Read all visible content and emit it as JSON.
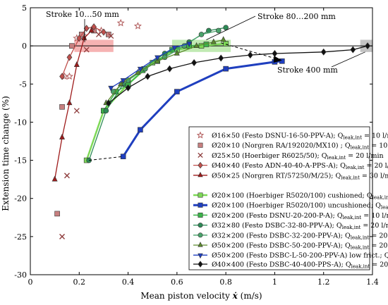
{
  "chart_data": {
    "type": "scatter",
    "xlabel": "Mean piston velocity",
    "xsymbol": "ẋ",
    "xunit": "(m/s)",
    "ylabel": "Extension time change (%)",
    "xlim": [
      0,
      1.4
    ],
    "ylim": [
      -30,
      5
    ],
    "xticks": [
      "0",
      "0.2",
      "0.4",
      "0.6",
      "0.8",
      "1",
      "1.2",
      "1.4"
    ],
    "yticks": [
      "5",
      "0",
      "-5",
      "-10",
      "-15",
      "-20",
      "-25",
      "-30"
    ],
    "grid": false,
    "legend_placement": "right",
    "annotations": [
      {
        "text": "Stroke 10…50 mm"
      },
      {
        "text": "Stroke 80…200 mm"
      },
      {
        "text": "Stroke 400 mm"
      }
    ],
    "series": [
      {
        "name": "Ø16×50 (Festo DSNU-16-50-PPV-A); Q",
        "sub": "leak,int",
        "tail": " = 10 l/min",
        "color": "#b05a5a",
        "marker": "star",
        "line": false,
        "x": [
          0.14,
          0.16,
          0.19,
          0.22,
          0.29,
          0.37,
          0.44
        ],
        "y": [
          -4,
          -4,
          1,
          1.3,
          2,
          3,
          2.6
        ]
      },
      {
        "name": "Ø20×10 (Norgren RA/192020/MX10) ; Q",
        "sub": "leak,int",
        "tail": " = 10 l/min",
        "color": "#c77f7f",
        "marker": "square",
        "line": false,
        "x": [
          0.11,
          0.13,
          0.17,
          0.21,
          0.26,
          0.32
        ],
        "y": [
          -22,
          -8,
          0,
          1.5,
          2,
          1.5
        ]
      },
      {
        "name": "Ø25×50 (Hoerbiger R6025/50); Q",
        "sub": "leak,int",
        "tail": " = 20 l/min",
        "color": "#8c3a3a",
        "marker": "cross",
        "line": false,
        "x": [
          0.13,
          0.15,
          0.19,
          0.23,
          0.28,
          0.33
        ],
        "y": [
          -25,
          -17,
          -8.5,
          -0.5,
          1.5,
          1.3
        ]
      },
      {
        "name": "Ø40×40 (Festo ADN-40-40-A-PPS-A); Q",
        "sub": "leak,int",
        "tail": " = 20 l/min",
        "color": "#c0504d",
        "marker": "diamond",
        "line": true,
        "x": [
          0.13,
          0.16,
          0.2,
          0.23,
          0.26,
          0.3
        ],
        "y": [
          -4,
          -1.5,
          1,
          2.3,
          2.5,
          1.8
        ]
      },
      {
        "name": "Ø50×25 (Norgren RT/57250/M/25); Q",
        "sub": "leak,int",
        "tail": " = 30 l/min",
        "color": "#9e1b1b",
        "marker": "triangle",
        "line": true,
        "x": [
          0.1,
          0.13,
          0.16,
          0.19,
          0.22,
          0.25
        ],
        "y": [
          -17.5,
          -12,
          -7.5,
          -2.5,
          1,
          2
        ]
      },
      {
        "name": "Ø20×100 (Hoerbiger R5020/100) cushioned; Q",
        "sub": "leak,int",
        "tail": " = 20 l/min",
        "color": "#7ed957",
        "marker": "square",
        "line": true,
        "lw": 2.5,
        "x": [
          0.23,
          0.3,
          0.4,
          0.5,
          0.6,
          0.7,
          0.8
        ],
        "y": [
          -15,
          -8.5,
          -5,
          -2.2,
          -0.5,
          0,
          0.3
        ]
      },
      {
        "name": "Ø20×100 (Hoerbiger R5020/100) uncushioned; Q",
        "sub": "leak,int",
        "tail": " = 20 l/min",
        "color": "#1f3fbf",
        "marker": "square",
        "line": true,
        "lw": 3,
        "x": [
          0.38,
          0.45,
          0.6,
          0.8,
          1.0,
          1.03
        ],
        "y": [
          -14.5,
          -11,
          -6,
          -3,
          -2.1,
          -2
        ]
      },
      {
        "name": "Ø20×200 (Festo DSNU-20-200-P-A); Q",
        "sub": "leak,int",
        "tail": " = 10 l/min",
        "color": "#3bb54a",
        "marker": "square",
        "line": true,
        "lw": 1.5,
        "x": [
          0.3,
          0.35,
          0.4,
          0.46,
          0.52,
          0.58,
          0.65,
          0.72
        ],
        "y": [
          -8.5,
          -6,
          -5.1,
          -3.2,
          -2,
          -0.5,
          0,
          0.2
        ]
      },
      {
        "name": "Ø32×80 (Festo DSBC-32-80-PPV-A); Q",
        "sub": "leak,int",
        "tail": " = 20 l/min",
        "color": "#2e8b57",
        "marker": "circle",
        "line": true,
        "x": [
          0.24,
          0.31,
          0.38,
          0.46,
          0.55,
          0.65,
          0.73,
          0.8
        ],
        "y": [
          -15,
          -8.5,
          -5,
          -3,
          -1,
          0.5,
          2,
          2.4
        ]
      },
      {
        "name": "Ø32×200 (Festo DSBC-32-200-PPV-A); Q",
        "sub": "leak,int",
        "tail": " = 20 l/min",
        "color": "#4aa36b",
        "marker": "circle",
        "line": true,
        "x": [
          0.34,
          0.4,
          0.47,
          0.55,
          0.63,
          0.7,
          0.77
        ],
        "y": [
          -6,
          -4.5,
          -3,
          -1.5,
          0,
          1.5,
          2
        ]
      },
      {
        "name": "Ø50×200 (Festo DSBC-50-200-PPV-A); Q",
        "sub": "leak,int",
        "tail": " = 20 l/min",
        "color": "#5c8a2e",
        "marker": "triangle",
        "line": true,
        "x": [
          0.31,
          0.37,
          0.44,
          0.52,
          0.6,
          0.68,
          0.75,
          0.79
        ],
        "y": [
          -7.5,
          -5,
          -3.5,
          -2,
          -1,
          0,
          0.5,
          0.8
        ]
      },
      {
        "name": "Ø50×200 (Festo DSBC-L-50-200-PPV-A) low frict.; Q",
        "sub": "leak,int",
        "tail": " = 20 l/min",
        "color": "#1f3fbf",
        "marker": "tri-down",
        "line": true,
        "x": [
          0.33,
          0.38,
          0.45,
          0.52,
          0.59,
          0.65
        ],
        "y": [
          -5.5,
          -4.5,
          -3,
          -1.5,
          -0.2,
          0.3
        ]
      },
      {
        "name": "Ø40×400 (Festo DSBC-40-400-PPS-A); Q",
        "sub": "leak,int",
        "tail": " = 20 l/min",
        "color": "#111111",
        "marker": "diamond",
        "line": true,
        "x": [
          0.32,
          0.4,
          0.48,
          0.57,
          0.67,
          0.78,
          0.9,
          1.0,
          1.2,
          1.32,
          1.38
        ],
        "y": [
          -7.5,
          -5.5,
          -4,
          -3,
          -2.2,
          -1.6,
          -1.2,
          -1,
          -0.8,
          -0.5,
          0
        ]
      }
    ]
  }
}
